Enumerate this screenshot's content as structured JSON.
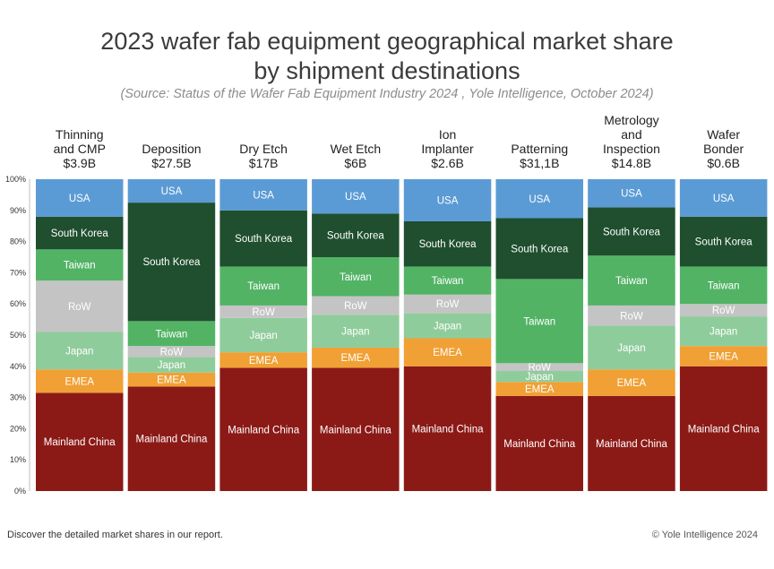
{
  "chart_data": {
    "type": "stacked-bar-100",
    "title_line1": "2023 wafer fab equipment geographical market share",
    "title_line2": "by shipment destinations",
    "subtitle": "(Source: Status of the Wafer Fab Equipment Industry 2024 , Yole Intelligence, October 2024)",
    "ylim": [
      0,
      100
    ],
    "yticks": [
      "0%",
      "10%",
      "20%",
      "30%",
      "40%",
      "50%",
      "60%",
      "70%",
      "80%",
      "90%",
      "100%"
    ],
    "categories": [
      {
        "lines": [
          "Thinning",
          "and CMP",
          "$3.9B"
        ]
      },
      {
        "lines": [
          "Deposition",
          "$27.5B"
        ]
      },
      {
        "lines": [
          "Dry Etch",
          "$17B"
        ]
      },
      {
        "lines": [
          "Wet Etch",
          "$6B"
        ]
      },
      {
        "lines": [
          "Ion",
          "Implanter",
          "$2.6B"
        ]
      },
      {
        "lines": [
          "Patterning",
          "$31,1B"
        ]
      },
      {
        "lines": [
          "Metrology",
          "and",
          "Inspection",
          "$14.8B"
        ]
      },
      {
        "lines": [
          "Wafer",
          "Bonder",
          "$0.6B"
        ]
      }
    ],
    "series": [
      {
        "name": "Mainland China",
        "color": "#8b1a16",
        "label_color": "#ffffff",
        "values": [
          31.5,
          33.5,
          39.5,
          39.5,
          40,
          30.5,
          30.5,
          40
        ]
      },
      {
        "name": "EMEA",
        "color": "#f0a034",
        "label_color": "#ffffff",
        "values": [
          7.5,
          4.5,
          5,
          6.5,
          9,
          4.5,
          8.5,
          6.5
        ]
      },
      {
        "name": "Japan",
        "color": "#8fcc9b",
        "label_color": "#ffffff",
        "values": [
          12,
          5,
          11,
          10.5,
          8,
          3.5,
          14,
          9.5
        ]
      },
      {
        "name": "RoW",
        "color": "#c4c4c4",
        "label_color": "#ffffff",
        "values": [
          16.5,
          3.5,
          4,
          6,
          6,
          2.5,
          6.5,
          4
        ]
      },
      {
        "name": "Taiwan",
        "color": "#52b365",
        "label_color": "#ffffff",
        "values": [
          10,
          8,
          12.5,
          12.5,
          9,
          27,
          16,
          12
        ]
      },
      {
        "name": "South Korea",
        "color": "#1f4f2e",
        "label_color": "#ffffff",
        "values": [
          10.5,
          38,
          18,
          14,
          14.5,
          19.5,
          15.5,
          16
        ]
      },
      {
        "name": "USA",
        "color": "#5b9bd5",
        "label_color": "#ffffff",
        "values": [
          12,
          7.5,
          10,
          11,
          13.5,
          12.5,
          9,
          12
        ]
      }
    ]
  },
  "footer": {
    "note": "Discover the detailed market shares in our report.",
    "copyright": "© Yole Intelligence 2024"
  }
}
